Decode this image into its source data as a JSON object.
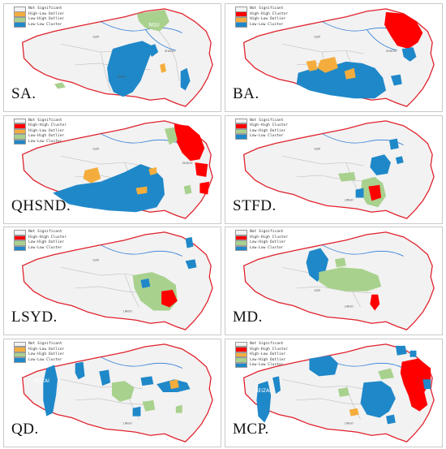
{
  "colors": {
    "not_significant": "#f2f2f2",
    "high_high": "#ff0000",
    "high_low": "#f4ad3d",
    "low_high": "#a9d18e",
    "low_low": "#1f88c9",
    "border_red": "#e0202a",
    "river_blue": "#2e7dd6",
    "county_gray": "#bdbdbd"
  },
  "panels": [
    {
      "label": "SA.",
      "legend": [
        "Not Significant",
        "High-Low Outlier",
        "Low-High Outlier",
        "Low-Low Cluster"
      ],
      "legend_keys": [
        "not_significant",
        "high_low",
        "low_high",
        "low_low"
      ]
    },
    {
      "label": "BA.",
      "legend": [
        "Not Significant",
        "High-High Cluster",
        "High-Low Outlier",
        "Low-Low Cluster"
      ],
      "legend_keys": [
        "not_significant",
        "high_high",
        "high_low",
        "low_low"
      ]
    },
    {
      "label": "QHSND.",
      "legend": [
        "Not Significant",
        "High-High Cluster",
        "High-Low Outlier",
        "Low-High Outlier",
        "Low-Low Cluster"
      ],
      "legend_keys": [
        "not_significant",
        "high_high",
        "high_low",
        "low_high",
        "low_low"
      ]
    },
    {
      "label": "STFD.",
      "legend": [
        "Not Significant",
        "High-High Cluster",
        "Low-High Outlier",
        "Low-Low Cluster"
      ],
      "legend_keys": [
        "not_significant",
        "high_high",
        "low_high",
        "low_low"
      ]
    },
    {
      "label": "LSYD.",
      "legend": [
        "Not Significant",
        "High-High Cluster",
        "Low-High Outlier",
        "Low-Low Cluster"
      ],
      "legend_keys": [
        "not_significant",
        "high_high",
        "low_high",
        "low_low"
      ]
    },
    {
      "label": "MD.",
      "legend": [
        "Not Significant",
        "High-High Cluster",
        "Low-High Outlier",
        "Low-Low Cluster"
      ],
      "legend_keys": [
        "not_significant",
        "high_high",
        "low_high",
        "low_low"
      ]
    },
    {
      "label": "QD.",
      "legend": [
        "Not Significant",
        "High-Low Outlier",
        "Low-High Outlier",
        "Low-Low Cluster"
      ],
      "legend_keys": [
        "not_significant",
        "high_low",
        "low_high",
        "low_low"
      ]
    },
    {
      "label": "MCP.",
      "legend": [
        "Not Significant",
        "High-High Cluster",
        "High-Low Outlier",
        "Low-High Outlier",
        "Low-Low Cluster"
      ],
      "legend_keys": [
        "not_significant",
        "high_high",
        "high_low",
        "low_high",
        "low_low"
      ]
    }
  ],
  "map_labels": {
    "nqu": "NQU",
    "bdzai": "BEIZAI"
  }
}
